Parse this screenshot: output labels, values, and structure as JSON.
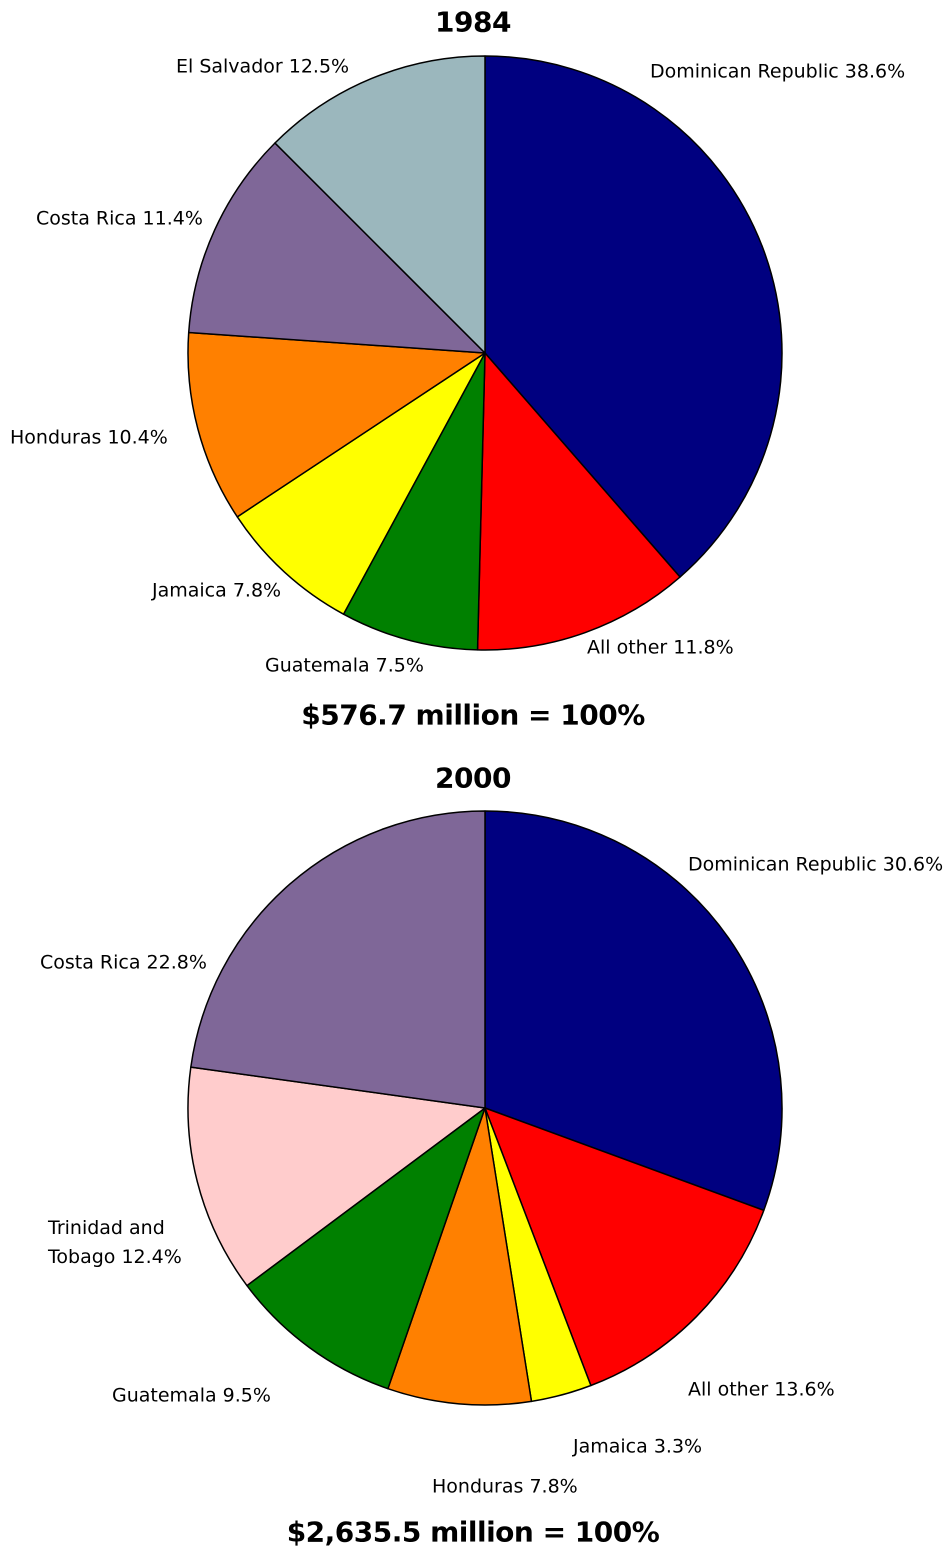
{
  "chart_data": [
    {
      "type": "pie",
      "title": "1984",
      "total_label": "$576.7 million = 100%",
      "categories": [
        "Dominican Republic",
        "All other",
        "Guatemala",
        "Jamaica",
        "Honduras",
        "Costa Rica",
        "El Salvador"
      ],
      "values": [
        38.6,
        11.8,
        7.5,
        7.8,
        10.4,
        11.4,
        12.5
      ],
      "value_labels": [
        "38.6%",
        "11.8%",
        "7.5%",
        "7.8%",
        "10.4%",
        "11.4%",
        "12.5%"
      ],
      "colors": [
        "#000080",
        "#ff0000",
        "#008000",
        "#ffff00",
        "#ff8000",
        "#7f6798",
        "#9bb7bd"
      ]
    },
    {
      "type": "pie",
      "title": "2000",
      "total_label": "$2,635.5 million = 100%",
      "categories": [
        "Dominican Republic",
        "All other",
        "Jamaica",
        "Honduras",
        "Guatemala",
        "Trinidad and Tobago",
        "Costa Rica"
      ],
      "values": [
        30.6,
        13.6,
        3.3,
        7.8,
        9.5,
        12.4,
        22.8
      ],
      "value_labels": [
        "30.6%",
        "13.6%",
        "3.3%",
        "7.8%",
        "9.5%",
        "12.4%",
        "22.8%"
      ],
      "colors": [
        "#000080",
        "#ff0000",
        "#ffff00",
        "#ff8000",
        "#008000",
        "#ffcccc",
        "#7f6798"
      ]
    }
  ]
}
